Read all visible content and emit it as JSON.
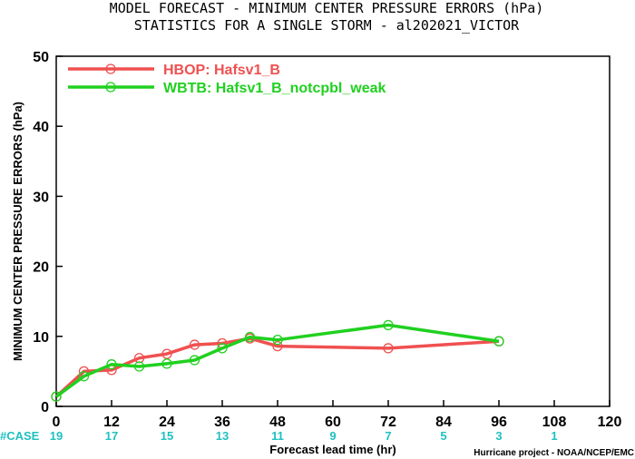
{
  "chart_data": {
    "type": "line",
    "title": "MODEL FORECAST - MINIMUM CENTER PRESSURE ERRORS (hPa)",
    "subtitle": "STATISTICS FOR A SINGLE STORM - al202021_VICTOR",
    "xlabel": "Forecast lead time (hr)",
    "ylabel": "MINIMUM CENTER PRESSURE ERRORS (hPa)",
    "xlim": [
      0,
      120
    ],
    "ylim": [
      0,
      50
    ],
    "xticks": [
      0,
      12,
      24,
      36,
      48,
      60,
      72,
      84,
      96,
      108,
      120
    ],
    "yticks": [
      0,
      10,
      20,
      30,
      40,
      50
    ],
    "legend_position": "top-left",
    "series": [
      {
        "name": "HBOP: Hafsv1_B",
        "color": "#f05050",
        "x": [
          0,
          6,
          12,
          18,
          24,
          30,
          36,
          42,
          48,
          72,
          96
        ],
        "y": [
          1.4,
          5.0,
          5.2,
          6.9,
          7.5,
          8.8,
          9.0,
          9.7,
          8.6,
          8.3,
          9.3
        ]
      },
      {
        "name": "WBTB: Hafsv1_B_notcpbl_weak",
        "color": "#20d020",
        "x": [
          0,
          6,
          12,
          18,
          24,
          30,
          36,
          42,
          48,
          72,
          96
        ],
        "y": [
          1.4,
          4.3,
          6.0,
          5.7,
          6.1,
          6.6,
          8.3,
          9.9,
          9.5,
          11.6,
          9.3
        ]
      }
    ],
    "cases": {
      "label": "#CASE",
      "x": [
        0,
        12,
        24,
        36,
        48,
        60,
        72,
        84,
        96,
        108
      ],
      "values": [
        "19",
        "17",
        "15",
        "13",
        "11",
        "9",
        "7",
        "5",
        "3",
        "1"
      ]
    },
    "credit": "Hurricane project - NOAA/NCEP/EMC"
  }
}
